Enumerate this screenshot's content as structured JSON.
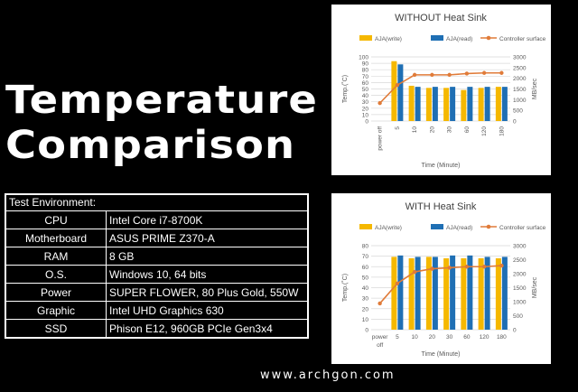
{
  "heading": {
    "line1": "Temperature",
    "line2": "Comparison"
  },
  "environment": {
    "header": "Test Environment:",
    "rows": [
      {
        "key": "CPU",
        "value": "Intel Core i7-8700K"
      },
      {
        "key": "Motherboard",
        "value": "ASUS PRIME Z370-A"
      },
      {
        "key": "RAM",
        "value": "8 GB"
      },
      {
        "key": "O.S.",
        "value": "Windows 10, 64 bits"
      },
      {
        "key": "Power",
        "value": "SUPER FLOWER, 80 Plus Gold, 550W"
      },
      {
        "key": "Graphic",
        "value": "Intel UHD Graphics 630"
      },
      {
        "key": "SSD",
        "value": "Phison E12, 960GB PCIe Gen3x4"
      }
    ]
  },
  "website": "www.archgon.com",
  "colors": {
    "write": "#f5b800",
    "read": "#1f6fb4",
    "controller": "#e07b39"
  },
  "chart_data": [
    {
      "type": "bar",
      "title": "WITHOUT Heat Sink",
      "xlabel": "Time (Minute)",
      "ylabel": "Temp.(˚C)",
      "y2label": "MB/sec",
      "categories": [
        "power off",
        "5",
        "10",
        "20",
        "30",
        "60",
        "120",
        "180"
      ],
      "category_lines": [
        [
          "power off"
        ],
        [
          "5"
        ],
        [
          "10"
        ],
        [
          "20"
        ],
        [
          "30"
        ],
        [
          "60"
        ],
        [
          "120"
        ],
        [
          "180"
        ]
      ],
      "rotate_x": true,
      "ylim": [
        0,
        100
      ],
      "yticks": [
        0,
        10,
        20,
        30,
        40,
        50,
        60,
        70,
        80,
        90,
        100
      ],
      "y2lim": [
        0,
        3000
      ],
      "y2ticks": [
        0,
        500,
        1000,
        1500,
        2000,
        2500,
        3000
      ],
      "legend": [
        "AJA(write)",
        "AJA(read)",
        "Controller surface"
      ],
      "series": [
        {
          "name": "AJA(write)",
          "axis": "right",
          "values": [
            null,
            2800,
            1650,
            1550,
            1550,
            1450,
            1550,
            1600
          ]
        },
        {
          "name": "AJA(read)",
          "axis": "right",
          "values": [
            null,
            2650,
            1600,
            1600,
            1600,
            1600,
            1600,
            1600
          ]
        },
        {
          "name": "Controller surface",
          "axis": "left",
          "type": "line",
          "values": [
            28,
            56,
            72,
            72,
            72,
            74,
            75,
            75
          ]
        }
      ]
    },
    {
      "type": "bar",
      "title": "WITH Heat Sink",
      "xlabel": "Time (Minute)",
      "ylabel": "Temp.(˚C)",
      "y2label": "MB/sec",
      "categories": [
        "power off",
        "5",
        "10",
        "20",
        "30",
        "60",
        "120",
        "180"
      ],
      "category_lines": [
        [
          "power",
          "off"
        ],
        [
          "5"
        ],
        [
          "10"
        ],
        [
          "20"
        ],
        [
          "30"
        ],
        [
          "60"
        ],
        [
          "120"
        ],
        [
          "180"
        ]
      ],
      "rotate_x": false,
      "ylim": [
        0,
        80
      ],
      "yticks": [
        0,
        10,
        20,
        30,
        40,
        50,
        60,
        70,
        80
      ],
      "y2lim": [
        0,
        3000
      ],
      "y2ticks": [
        0,
        500,
        1000,
        1500,
        2000,
        2500,
        3000
      ],
      "legend": [
        "AJA(write)",
        "AJA(read)",
        "Controller surface"
      ],
      "series": [
        {
          "name": "AJA(write)",
          "axis": "right",
          "values": [
            null,
            2600,
            2550,
            2600,
            2550,
            2550,
            2550,
            2550
          ]
        },
        {
          "name": "AJA(read)",
          "axis": "right",
          "values": [
            null,
            2650,
            2600,
            2600,
            2650,
            2650,
            2600,
            2600
          ]
        },
        {
          "name": "Controller surface",
          "axis": "left",
          "type": "line",
          "values": [
            25,
            44,
            55,
            58,
            59,
            60,
            60,
            61
          ]
        }
      ]
    }
  ]
}
